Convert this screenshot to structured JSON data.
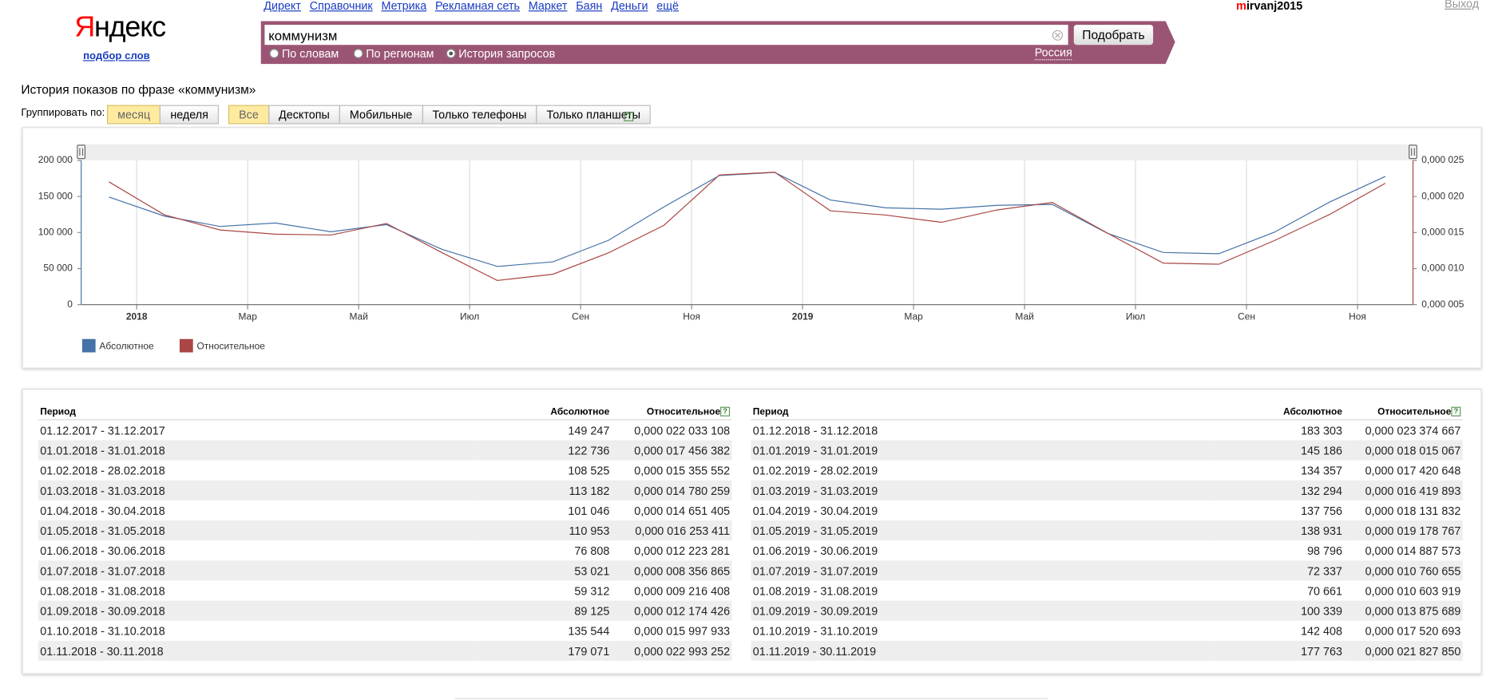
{
  "header": {
    "logo": "Яндекс",
    "logo_sub": "подбор слов",
    "nav": [
      "Директ",
      "Справочник",
      "Метрика",
      "Рекламная сеть",
      "Маркет",
      "Баян",
      "Деньги",
      "ещё"
    ],
    "user": "mirvanj2015",
    "logout": "Выход"
  },
  "search": {
    "query": "коммунизм",
    "button": "Подобрать",
    "modes": [
      "По словам",
      "По регионам",
      "История запросов"
    ],
    "selected_mode": 2,
    "region": "Россия"
  },
  "page_title": "История показов по фразе «коммунизм»",
  "group_label": "Группировать по:",
  "group_options": [
    "месяц",
    "неделя"
  ],
  "group_selected": 0,
  "device_options": [
    "Все",
    "Десктопы",
    "Мобильные",
    "Только телефоны",
    "Только планшеты"
  ],
  "device_selected": 0,
  "help_icon": "?",
  "chart_data": {
    "type": "line",
    "x": [
      "2017-12",
      "2018-01",
      "2018-02",
      "2018-03",
      "2018-04",
      "2018-05",
      "2018-06",
      "2018-07",
      "2018-08",
      "2018-09",
      "2018-10",
      "2018-11",
      "2018-12",
      "2019-01",
      "2019-02",
      "2019-03",
      "2019-04",
      "2019-05",
      "2019-06",
      "2019-07",
      "2019-08",
      "2019-09",
      "2019-10",
      "2019-11"
    ],
    "xlim": [
      "2017-12",
      "2019-12"
    ],
    "xticks": [
      {
        "value": "2018-01",
        "label": "2018"
      },
      {
        "value": "2018-03",
        "label": "Мар"
      },
      {
        "value": "2018-05",
        "label": "Май"
      },
      {
        "value": "2018-07",
        "label": "Июл"
      },
      {
        "value": "2018-09",
        "label": "Сен"
      },
      {
        "value": "2018-11",
        "label": "Ноя"
      },
      {
        "value": "2019-01",
        "label": "2019"
      },
      {
        "value": "2019-03",
        "label": "Мар"
      },
      {
        "value": "2019-05",
        "label": "Май"
      },
      {
        "value": "2019-07",
        "label": "Июл"
      },
      {
        "value": "2019-09",
        "label": "Сен"
      },
      {
        "value": "2019-11",
        "label": "Ноя"
      }
    ],
    "ylim": [
      0,
      200000
    ],
    "yticks": [
      0,
      {
        "value": 50000,
        "label": "50 000"
      },
      {
        "value": 100000,
        "label": "100 000"
      },
      {
        "value": 150000,
        "label": "150 000"
      },
      {
        "value": 200000,
        "label": "200 000"
      }
    ],
    "y2lim": [
      5e-06,
      2.5e-05
    ],
    "y2ticks": [
      {
        "value": 5e-06,
        "label": "0,000 005"
      },
      {
        "value": 1e-05,
        "label": "0,000 010"
      },
      {
        "value": 1.5e-05,
        "label": "0,000 015"
      },
      {
        "value": 2e-05,
        "label": "0,000 020"
      },
      {
        "value": 2.5e-05,
        "label": "0,000 025"
      }
    ],
    "grid": "x",
    "legend": "bottom-left",
    "series": [
      {
        "name": "Абсолютное",
        "color": "#4572a7",
        "values": [
          149247,
          122736,
          108525,
          113182,
          101046,
          110953,
          76808,
          53021,
          59312,
          89125,
          135544,
          179071,
          183303,
          145186,
          134357,
          132294,
          137756,
          138931,
          98796,
          72337,
          70661,
          100339,
          142408,
          177763
        ]
      },
      {
        "name": "Относительное",
        "color": "#aa4643",
        "axis": "y2",
        "values": [
          2.2033108e-05,
          1.7456382e-05,
          1.5355552e-05,
          1.4780259e-05,
          1.4651405e-05,
          1.6253411e-05,
          1.2223281e-05,
          8.356865e-06,
          9.216408e-06,
          1.2174426e-05,
          1.5997933e-05,
          2.2993252e-05,
          2.3374667e-05,
          1.8015067e-05,
          1.7420648e-05,
          1.6419893e-05,
          1.8131832e-05,
          1.9178767e-05,
          1.4887573e-05,
          1.0760655e-05,
          1.0603919e-05,
          1.3875689e-05,
          1.752069e-05,
          2.182785e-05
        ]
      }
    ]
  },
  "table": {
    "columns": [
      "Период",
      "Абсолютное",
      "Относительное"
    ],
    "rows": [
      [
        "01.12.2017 - 31.12.2017",
        "149 247",
        "0,000 022 033 108"
      ],
      [
        "01.01.2018 - 31.01.2018",
        "122 736",
        "0,000 017 456 382"
      ],
      [
        "01.02.2018 - 28.02.2018",
        "108 525",
        "0,000 015 355 552"
      ],
      [
        "01.03.2018 - 31.03.2018",
        "113 182",
        "0,000 014 780 259"
      ],
      [
        "01.04.2018 - 30.04.2018",
        "101 046",
        "0,000 014 651 405"
      ],
      [
        "01.05.2018 - 31.05.2018",
        "110 953",
        "0,000 016 253 411"
      ],
      [
        "01.06.2018 - 30.06.2018",
        "76 808",
        "0,000 012 223 281"
      ],
      [
        "01.07.2018 - 31.07.2018",
        "53 021",
        "0,000 008 356 865"
      ],
      [
        "01.08.2018 - 31.08.2018",
        "59 312",
        "0,000 009 216 408"
      ],
      [
        "01.09.2018 - 30.09.2018",
        "89 125",
        "0,000 012 174 426"
      ],
      [
        "01.10.2018 - 31.10.2018",
        "135 544",
        "0,000 015 997 933"
      ],
      [
        "01.11.2018 - 30.11.2018",
        "179 071",
        "0,000 022 993 252"
      ],
      [
        "01.12.2018 - 31.12.2018",
        "183 303",
        "0,000 023 374 667"
      ],
      [
        "01.01.2019 - 31.01.2019",
        "145 186",
        "0,000 018 015 067"
      ],
      [
        "01.02.2019 - 28.02.2019",
        "134 357",
        "0,000 017 420 648"
      ],
      [
        "01.03.2019 - 31.03.2019",
        "132 294",
        "0,000 016 419 893"
      ],
      [
        "01.04.2019 - 30.04.2019",
        "137 756",
        "0,000 018 131 832"
      ],
      [
        "01.05.2019 - 31.05.2019",
        "138 931",
        "0,000 019 178 767"
      ],
      [
        "01.06.2019 - 30.06.2019",
        "98 796",
        "0,000 014 887 573"
      ],
      [
        "01.07.2019 - 31.07.2019",
        "72 337",
        "0,000 010 760 655"
      ],
      [
        "01.08.2019 - 31.08.2019",
        "70 661",
        "0,000 010 603 919"
      ],
      [
        "01.09.2019 - 30.09.2019",
        "100 339",
        "0,000 013 875 689"
      ],
      [
        "01.10.2019 - 31.10.2019",
        "142 408",
        "0,000 017 520 693"
      ],
      [
        "01.11.2019 - 30.11.2019",
        "177 763",
        "0,000 021 827 850"
      ]
    ]
  }
}
